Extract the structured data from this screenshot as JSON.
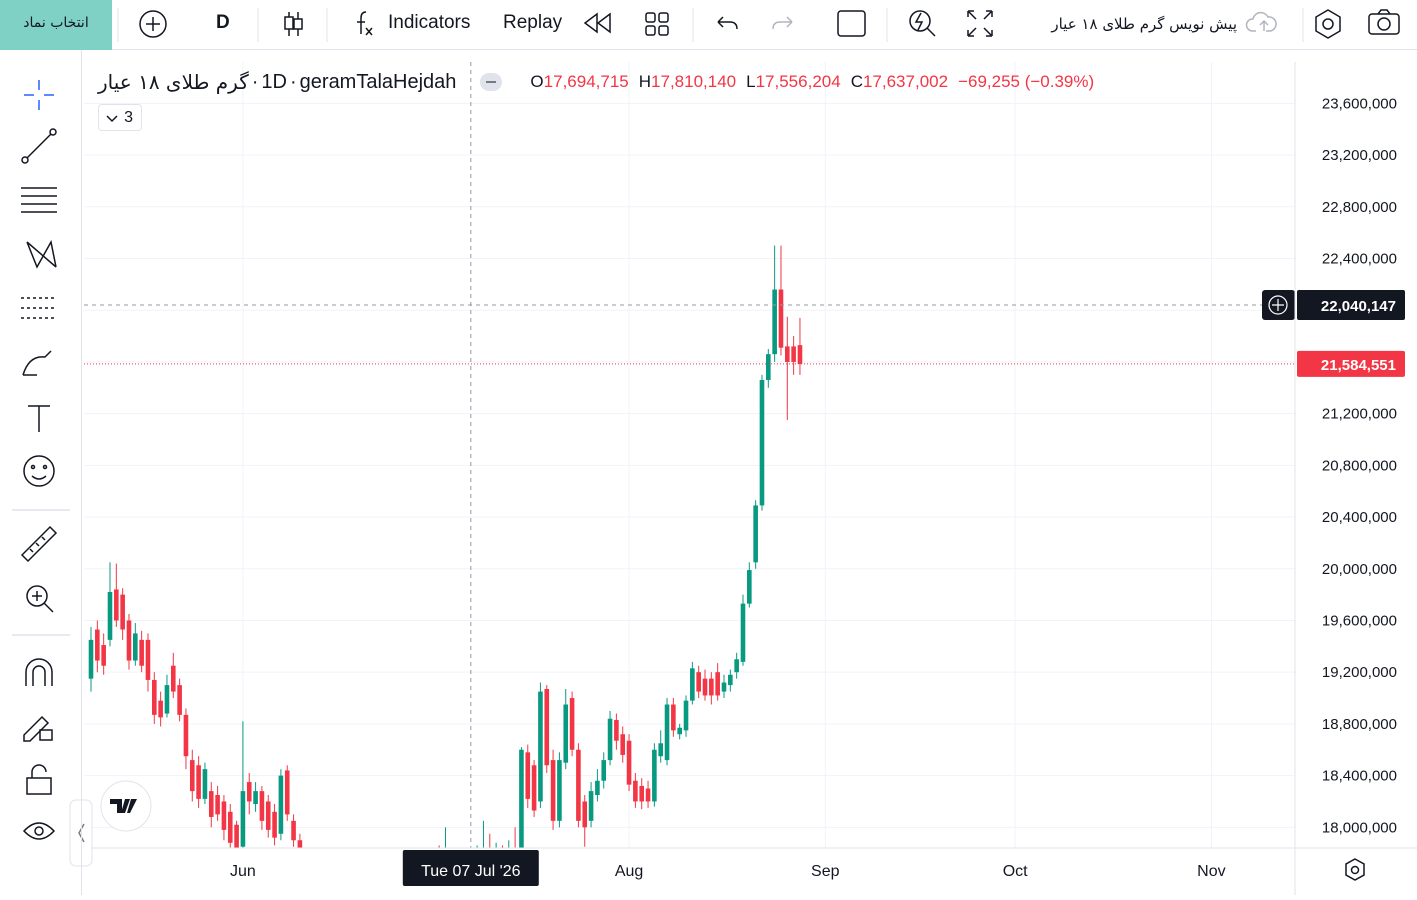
{
  "toolbar": {
    "symbol_button": "انتخاب نماد",
    "interval": "D",
    "indicators": "Indicators",
    "replay": "Replay",
    "layout_name": "پیش نویس گرم طلای ۱۸ عیار"
  },
  "chart_data": {
    "type": "candlestick",
    "header": {
      "symbol_name": "گرم طلای ۱۸ عیار",
      "separator": "·",
      "interval": "1D",
      "ticker": "geramTalaHejdah",
      "indicators_count": "3",
      "o_label": "O",
      "open": "17,694,715",
      "h_label": "H",
      "high": "17,810,140",
      "l_label": "L",
      "low": "17,556,204",
      "c_label": "C",
      "close": "17,637,002",
      "change": "−69,255 (−0.39%)"
    },
    "up_color": "#089981",
    "down_color": "#f23645",
    "grid": true,
    "categories": [
      null,
      null,
      null,
      null,
      null,
      null,
      null,
      null,
      null,
      null,
      null,
      null,
      null,
      null,
      null,
      null,
      null,
      null,
      null,
      null,
      null,
      null,
      null,
      null,
      "Jun",
      null,
      null,
      null,
      null,
      null,
      null,
      null,
      null,
      null,
      null,
      null,
      null,
      null,
      null,
      null,
      null,
      null,
      null,
      null,
      null,
      null,
      null,
      null,
      null,
      null,
      null,
      null,
      null,
      null,
      null,
      null,
      null,
      null,
      null,
      null,
      "Tue 07 Jul '26",
      null,
      null,
      null,
      null,
      null,
      null,
      null,
      null,
      null,
      null,
      null,
      null,
      null,
      null,
      null,
      null,
      null,
      null,
      null,
      null,
      null,
      null,
      null,
      null,
      "Aug",
      null,
      null,
      null,
      null,
      null,
      null,
      null,
      null,
      null,
      null,
      null,
      null,
      null,
      null,
      null,
      null,
      null,
      null,
      null,
      null,
      null,
      null,
      null,
      null,
      null,
      null,
      null,
      null,
      null,
      null,
      "Sep",
      null,
      null,
      null,
      null,
      null,
      null,
      null,
      null,
      null,
      null,
      null,
      null,
      null,
      null,
      null,
      null,
      null,
      null,
      null,
      null,
      null,
      null,
      null,
      null,
      null,
      null,
      null,
      null,
      null,
      "Oct",
      null,
      null,
      null,
      null,
      null,
      null,
      null,
      null,
      null,
      null,
      null,
      null,
      null,
      null,
      null,
      null,
      null,
      null,
      null,
      null,
      null,
      null,
      null,
      null,
      null,
      null,
      null,
      null,
      null,
      null,
      "Nov",
      null,
      null,
      null,
      null,
      null,
      null,
      null,
      null,
      null,
      null,
      null,
      null
    ],
    "open": [
      19150000,
      19530000,
      19410000,
      19450000,
      19840000,
      19800000,
      19600000,
      19290000,
      19450000,
      19450000,
      19140000,
      18980000,
      18880000,
      19250000,
      19100000,
      18870000,
      18520000,
      18480000,
      18220000,
      18280000,
      18250000,
      18200000,
      18120000,
      18020000,
      17850000,
      18350000,
      18180000,
      18280000,
      18200000,
      18120000,
      17950000,
      18440000,
      18050000,
      17900000,
      17800000,
      17650000,
      17550000,
      17620000,
      17480000,
      17400000,
      17520000,
      17450000,
      17380000,
      17460000,
      17550000,
      17500000,
      17580000,
      17620000,
      17550000,
      17600000,
      17660000,
      17580000,
      17640000,
      17700000,
      17650000,
      17720000,
      17680000,
      17740000,
      17700000,
      17720000,
      17694715,
      17640000,
      17720000,
      17780000,
      17740000,
      17800000,
      17760000,
      17820000,
      17780000,
      18580000,
      18480000,
      18200000,
      19070000,
      18520000,
      18050000,
      18500000,
      19000000,
      18600000,
      18200000,
      18050000,
      18250000,
      18360000,
      18520000,
      18830000,
      18720000,
      18670000,
      18360000,
      18320000,
      18300000,
      18200000,
      18550000,
      18520000,
      18950000,
      18720000,
      18750000,
      18980000,
      19200000,
      19150000,
      19150000,
      19200000,
      19050000,
      19100000,
      19200000,
      19280000,
      19730000,
      20050000,
      20490000,
      21460000,
      21660000,
      22160000,
      21720000,
      21720000,
      21730000,
      null,
      null,
      null,
      null,
      null,
      null,
      null,
      null,
      null,
      null,
      null,
      null,
      null,
      null,
      null,
      null,
      null,
      null,
      null,
      null,
      null,
      null,
      null,
      null,
      null,
      null,
      null,
      null,
      null,
      null,
      null,
      null,
      null,
      null,
      null,
      null,
      null,
      null,
      null,
      null,
      null,
      null,
      null,
      null,
      null,
      null,
      null,
      null,
      null,
      null,
      null,
      null,
      null,
      null,
      null,
      null,
      null,
      null,
      null,
      null,
      null,
      null,
      null,
      null,
      null,
      null,
      null,
      null,
      null,
      null,
      null,
      null,
      null,
      null,
      null,
      null,
      null
    ],
    "high": [
      19550000,
      19600000,
      19500000,
      20050000,
      20040000,
      19850000,
      19650000,
      19580000,
      19520000,
      19500000,
      19200000,
      19050000,
      19180000,
      19350000,
      19150000,
      18920000,
      18600000,
      18550000,
      18500000,
      18350000,
      18320000,
      18250000,
      18180000,
      18050000,
      18820000,
      18420000,
      18350000,
      18320000,
      18250000,
      18180000,
      18450000,
      18480000,
      18100000,
      17950000,
      17840000,
      17700000,
      17680000,
      17660000,
      17520000,
      17560000,
      17580000,
      17500000,
      17500000,
      17600000,
      17620000,
      17640000,
      17700000,
      17680000,
      17660000,
      17720000,
      17700000,
      17700000,
      17760000,
      17780000,
      17800000,
      17860000,
      18000000,
      17800000,
      17780000,
      17790000,
      17810140,
      17860000,
      18050000,
      17950000,
      17880000,
      17860000,
      17900000,
      18000000,
      18620000,
      18640000,
      18520000,
      19120000,
      19100000,
      18600000,
      18580000,
      19070000,
      19050000,
      18650000,
      18250000,
      18350000,
      18450000,
      18580000,
      18900000,
      18880000,
      18780000,
      18720000,
      18420000,
      18380000,
      18360000,
      18650000,
      18750000,
      19000000,
      19000000,
      18800000,
      19020000,
      19280000,
      19250000,
      19220000,
      19200000,
      19270000,
      19180000,
      19220000,
      19350000,
      19800000,
      20050000,
      20530000,
      21500000,
      21700000,
      22500000,
      22500000,
      21950000,
      21800000,
      21940000,
      null,
      null,
      null,
      null,
      null,
      null,
      null,
      null,
      null,
      null,
      null,
      null,
      null,
      null,
      null,
      null,
      null,
      null,
      null,
      null,
      null,
      null,
      null,
      null,
      null,
      null,
      null,
      null,
      null,
      null,
      null,
      null,
      null,
      null,
      null,
      null,
      null,
      null,
      null,
      null,
      null,
      null,
      null,
      null,
      null,
      null,
      null,
      null,
      null,
      null,
      null,
      null,
      null,
      null,
      null,
      null,
      null,
      null,
      null,
      null,
      null,
      null,
      null,
      null,
      null,
      null,
      null,
      null,
      null,
      null,
      null,
      null,
      null,
      null,
      null,
      null,
      null
    ],
    "low": [
      19050000,
      19200000,
      19180000,
      19400000,
      19550000,
      19450000,
      19220000,
      19250000,
      19200000,
      19050000,
      18800000,
      18780000,
      18850000,
      19000000,
      18820000,
      18450000,
      18200000,
      18150000,
      18180000,
      18000000,
      18050000,
      17900000,
      17800000,
      17700000,
      17800000,
      18100000,
      18120000,
      17980000,
      17920000,
      17860000,
      17900000,
      18050000,
      17850000,
      17700000,
      17580000,
      17500000,
      17500000,
      17420000,
      17350000,
      17360000,
      17400000,
      17300000,
      17340000,
      17420000,
      17460000,
      17450000,
      17540000,
      17500000,
      17500000,
      17560000,
      17520000,
      17540000,
      17600000,
      17600000,
      17600000,
      17620000,
      17620000,
      17640000,
      17620000,
      17600000,
      17556204,
      17580000,
      17660000,
      17700000,
      17680000,
      17700000,
      17720000,
      17740000,
      17750000,
      18150000,
      18080000,
      18150000,
      18420000,
      17980000,
      18000000,
      18450000,
      18550000,
      18000000,
      17850000,
      18000000,
      18200000,
      18300000,
      18480000,
      18600000,
      18500000,
      18280000,
      18150000,
      18140000,
      18150000,
      18160000,
      18500000,
      18480000,
      18700000,
      18680000,
      18700000,
      18950000,
      19000000,
      18980000,
      18950000,
      18980000,
      19000000,
      19050000,
      19150000,
      19250000,
      19700000,
      20000000,
      20450000,
      21400000,
      21600000,
      21650000,
      21150000,
      21500000,
      21500000,
      null,
      null,
      null,
      null,
      null,
      null,
      null,
      null,
      null,
      null,
      null,
      null,
      null,
      null,
      null,
      null,
      null,
      null,
      null,
      null,
      null,
      null,
      null,
      null,
      null,
      null,
      null,
      null,
      null,
      null,
      null,
      null,
      null,
      null,
      null,
      null,
      null,
      null,
      null,
      null,
      null,
      null,
      null,
      null,
      null,
      null,
      null,
      null,
      null,
      null,
      null,
      null,
      null,
      null,
      null,
      null,
      null,
      null,
      null,
      null,
      null,
      null,
      null,
      null,
      null,
      null,
      null,
      null,
      null,
      null,
      null,
      null,
      null,
      null,
      null,
      null,
      null
    ],
    "close": [
      19450000,
      19290000,
      19250000,
      19820000,
      19600000,
      19530000,
      19290000,
      19500000,
      19250000,
      19140000,
      18870000,
      18850000,
      19100000,
      19050000,
      18870000,
      18550000,
      18280000,
      18220000,
      18450000,
      18080000,
      18100000,
      17980000,
      17880000,
      17820000,
      18280000,
      18200000,
      18280000,
      18050000,
      17980000,
      17920000,
      18400000,
      18100000,
      17900000,
      17800000,
      17650000,
      17550000,
      17620000,
      17480000,
      17400000,
      17520000,
      17450000,
      17380000,
      17460000,
      17550000,
      17500000,
      17580000,
      17620000,
      17550000,
      17600000,
      17660000,
      17580000,
      17640000,
      17700000,
      17650000,
      17720000,
      17680000,
      17740000,
      17700000,
      17720000,
      17706257,
      17637002,
      17720000,
      17780000,
      17740000,
      17800000,
      17760000,
      17820000,
      17780000,
      18600000,
      18220000,
      18130000,
      19050000,
      18480000,
      18050000,
      18520000,
      18950000,
      18600000,
      18050000,
      18000000,
      18280000,
      18360000,
      18520000,
      18840000,
      18670000,
      18560000,
      18330000,
      18200000,
      18200000,
      18200000,
      18600000,
      18650000,
      18950000,
      18750000,
      18770000,
      18980000,
      19230000,
      19050000,
      19020000,
      19020000,
      19020000,
      19120000,
      19180000,
      19300000,
      19730000,
      19990000,
      20490000,
      21460000,
      21660000,
      22160000,
      21710000,
      21600000,
      21600000,
      21584551,
      null,
      null,
      null,
      null,
      null,
      null,
      null,
      null,
      null,
      null,
      null,
      null,
      null,
      null,
      null,
      null,
      null,
      null,
      null,
      null,
      null,
      null,
      null,
      null,
      null,
      null,
      null,
      null,
      null,
      null,
      null,
      null,
      null,
      null,
      null,
      null,
      null,
      null,
      null,
      null,
      null,
      null,
      null,
      null,
      null,
      null,
      null,
      null,
      null,
      null,
      null,
      null,
      null,
      null,
      null,
      null,
      null,
      null,
      null,
      null,
      null,
      null,
      null,
      null,
      null,
      null,
      null,
      null,
      null,
      null,
      null,
      null,
      null,
      null,
      null,
      null,
      null
    ],
    "ylim": [
      17840000,
      23920000
    ],
    "yticks": [
      {
        "value": 18000000,
        "label": "18,000,000"
      },
      {
        "value": 18400000,
        "label": "18,400,000"
      },
      {
        "value": 18800000,
        "label": "18,800,000"
      },
      {
        "value": 19200000,
        "label": "19,200,000"
      },
      {
        "value": 19600000,
        "label": "19,600,000"
      },
      {
        "value": 20000000,
        "label": "20,000,000"
      },
      {
        "value": 20400000,
        "label": "20,400,000"
      },
      {
        "value": 20800000,
        "label": "20,800,000"
      },
      {
        "value": 21200000,
        "label": "21,200,000"
      },
      {
        "value": 21600000,
        "label": "21,600,000"
      },
      {
        "value": 22000000,
        "label": "22,000,000"
      },
      {
        "value": 22400000,
        "label": "22,400,000"
      },
      {
        "value": 22800000,
        "label": "22,800,000"
      },
      {
        "value": 23200000,
        "label": "23,200,000"
      },
      {
        "value": 23600000,
        "label": "23,600,000"
      }
    ],
    "crosshair_price": {
      "value": 22040147,
      "label": "22,040,147"
    },
    "last_price": {
      "value": 21584551,
      "label": "21,584,551"
    }
  }
}
